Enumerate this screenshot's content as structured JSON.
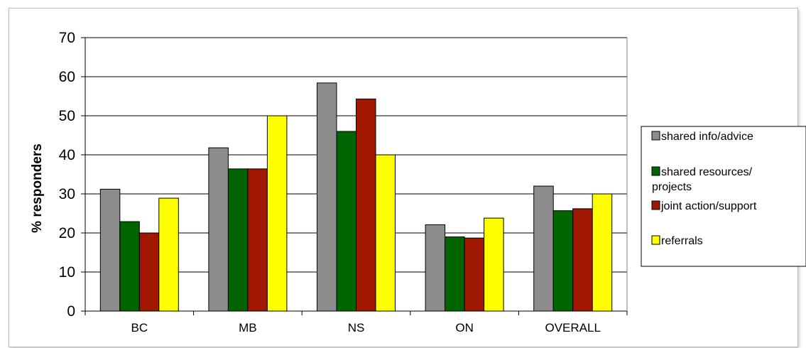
{
  "chart_data": {
    "type": "bar",
    "title": "",
    "xlabel": "",
    "ylabel": "% responders",
    "ylim": [
      0,
      70
    ],
    "yticks": [
      0,
      10,
      20,
      30,
      40,
      50,
      60,
      70
    ],
    "grid": true,
    "legend_position": "right",
    "categories": [
      "BC",
      "MB",
      "NS",
      "ON",
      "OVERALL"
    ],
    "series": [
      {
        "name": "shared info/advice",
        "color": "#8c8c8c",
        "values": [
          31.2,
          41.8,
          58.4,
          22.1,
          32.0
        ]
      },
      {
        "name": "shared resources/ projects",
        "color": "#006400",
        "values": [
          22.9,
          36.4,
          46.0,
          19.0,
          25.7
        ]
      },
      {
        "name": "joint action/support",
        "color": "#a01800",
        "values": [
          20.0,
          36.4,
          54.3,
          18.7,
          26.2
        ]
      },
      {
        "name": "referrals",
        "color": "#ffff00",
        "values": [
          28.9,
          50.0,
          40.0,
          23.8,
          30.0
        ]
      }
    ]
  }
}
